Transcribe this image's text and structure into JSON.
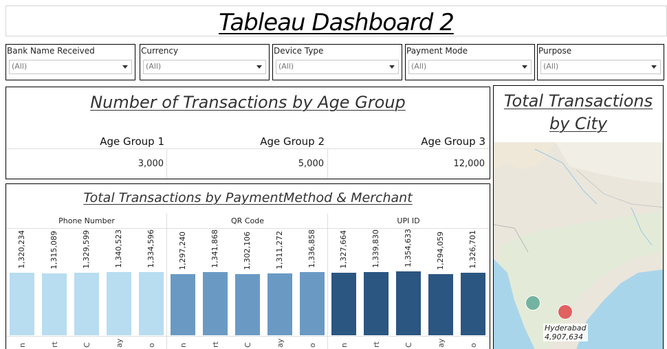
{
  "header": {
    "title": "Tableau Dashboard 2"
  },
  "filters": [
    {
      "label": "Bank Name Received",
      "value": "(All)"
    },
    {
      "label": "Currency",
      "value": "(All)"
    },
    {
      "label": "Device Type",
      "value": "(All)"
    },
    {
      "label": "Payment Mode",
      "value": "(All)"
    },
    {
      "label": "Purpose",
      "value": "(All)"
    }
  ],
  "age_panel": {
    "title": "Number of Transactions by Age Group",
    "groups": [
      {
        "label": "Age Group 1",
        "value": "3,000"
      },
      {
        "label": "Age Group 2",
        "value": "5,000"
      },
      {
        "label": "Age Group 3",
        "value": "12,000"
      }
    ]
  },
  "bars_panel": {
    "title": "Total Transactions by PaymentMethod & Merchant",
    "panes": [
      {
        "name": "Phone Number",
        "color": "#b8dcf0"
      },
      {
        "name": "QR Code",
        "color": "#6a9ac4"
      },
      {
        "name": "UPI ID",
        "color": "#2b5682"
      }
    ],
    "tick_fragments": [
      "n",
      "rt",
      "C",
      "ay",
      "o"
    ]
  },
  "chart_data": {
    "type": "bar",
    "title": "Total Transactions by PaymentMethod & Merchant",
    "series": [
      {
        "name": "Phone Number",
        "values": [
          1320234,
          1315089,
          1329599,
          1340523,
          1334596
        ],
        "labels": [
          "1,320,234",
          "1,315,089",
          "1,329,599",
          "1,340,523",
          "1,334,596"
        ]
      },
      {
        "name": "QR Code",
        "values": [
          1297240,
          1341868,
          1302106,
          1311272,
          1336858
        ],
        "labels": [
          "1,297,240",
          "1,341,868",
          "1,302,106",
          "1,311,272",
          "1,336,858"
        ]
      },
      {
        "name": "UPI ID",
        "values": [
          1327664,
          1339830,
          1354633,
          1294059,
          1326701
        ],
        "labels": [
          "1,327,664",
          "1,339,830",
          "1,354,633",
          "1,294,059",
          "1,326,701"
        ]
      }
    ],
    "ylim": [
      0,
      1400000
    ]
  },
  "city_panel": {
    "title_line1": "Total Transactions",
    "title_line2": "by City",
    "marks": [
      {
        "city": "",
        "color": "#6faf9f"
      },
      {
        "city": "Hyderabad",
        "value": "4,907,634",
        "color": "#e05a5a"
      }
    ]
  }
}
